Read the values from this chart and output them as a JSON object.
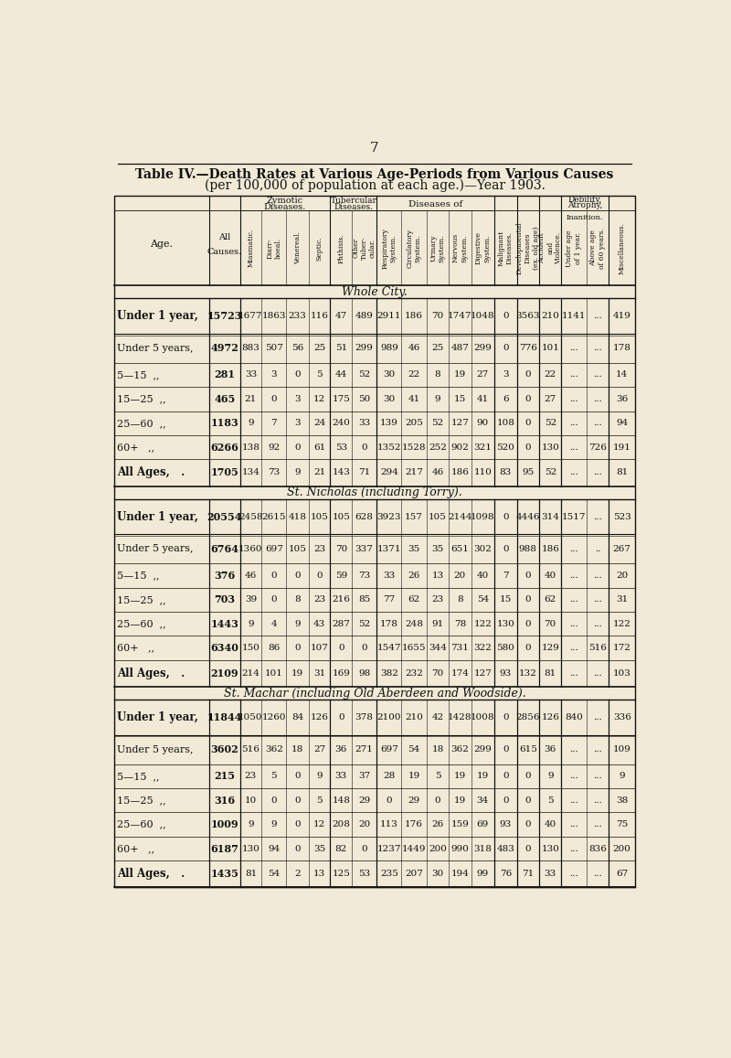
{
  "page_number": "7",
  "title_line1": "Table IV.—Death Rates at Various Age-Periods from Various Causes",
  "title_line2": "(per 100,000 of population at each age.)—Year 1903.",
  "bg_color": "#f0ead6",
  "text_color": "#111111",
  "sections": [
    {
      "name": "Whole City.",
      "rows": [
        [
          "Under 1 year,",
          "15723",
          "1677",
          "1863",
          "233",
          "116",
          "47",
          "489",
          "2911",
          "186",
          "70",
          "1747",
          "1048",
          "0",
          "3563",
          "210",
          "1141",
          "...",
          "419"
        ],
        [
          "Under 5 years,",
          "4972",
          "883",
          "507",
          "56",
          "25",
          "51",
          "299",
          "989",
          "46",
          "25",
          "487",
          "299",
          "0",
          "776",
          "101",
          "...",
          "...",
          "178"
        ],
        [
          "5—15  ,,",
          "281",
          "33",
          "3",
          "0",
          "5",
          "44",
          "52",
          "30",
          "22",
          "8",
          "19",
          "27",
          "3",
          "0",
          "22",
          "...",
          "...",
          "14"
        ],
        [
          "15—25  ,,",
          "465",
          "21",
          "0",
          "3",
          "12",
          "175",
          "50",
          "30",
          "41",
          "9",
          "15",
          "41",
          "6",
          "0",
          "27",
          "...",
          "...",
          "36"
        ],
        [
          "25—60  ,,",
          "1183",
          "9",
          "7",
          "3",
          "24",
          "240",
          "33",
          "139",
          "205",
          "52",
          "127",
          "90",
          "108",
          "0",
          "52",
          "...",
          "...",
          "94"
        ],
        [
          "60+   ,,",
          "6266",
          "138",
          "92",
          "0",
          "61",
          "53",
          "0",
          "1352",
          "1528",
          "252",
          "902",
          "321",
          "520",
          "0",
          "130",
          "...",
          "726",
          "191"
        ],
        [
          "All Ages,   .",
          "1705",
          "134",
          "73",
          "9",
          "21",
          "143",
          "71",
          "294",
          "217",
          "46",
          "186",
          "110",
          "83",
          "95",
          "52",
          "...",
          "...",
          "81"
        ]
      ]
    },
    {
      "name": "St. Nicholas (including Torry).",
      "rows": [
        [
          "Under 1 year,",
          "20554",
          "2458",
          "2615",
          "418",
          "105",
          "105",
          "628",
          "3923",
          "157",
          "105",
          "2144",
          "1098",
          "0",
          "4446",
          "314",
          "1517",
          "...",
          "523"
        ],
        [
          "Under 5 years,",
          "6764",
          "1360",
          "697",
          "105",
          "23",
          "70",
          "337",
          "1371",
          "35",
          "35",
          "651",
          "302",
          "0",
          "988",
          "186",
          "...",
          "..",
          "267"
        ],
        [
          "5—15  ,,",
          "376",
          "46",
          "0",
          "0",
          "0",
          "59",
          "73",
          "33",
          "26",
          "13",
          "20",
          "40",
          "7",
          "0",
          "40",
          "...",
          "...",
          "20"
        ],
        [
          "15—25  ,,",
          "703",
          "39",
          "0",
          "8",
          "23",
          "216",
          "85",
          "77",
          "62",
          "23",
          "8",
          "54",
          "15",
          "0",
          "62",
          "...",
          "...",
          "31"
        ],
        [
          "25—60  ,,",
          "1443",
          "9",
          "4",
          "9",
          "43",
          "287",
          "52",
          "178",
          "248",
          "91",
          "78",
          "122",
          "130",
          "0",
          "70",
          "...",
          "...",
          "122"
        ],
        [
          "60+   ,,",
          "6340",
          "150",
          "86",
          "0",
          "107",
          "0",
          "0",
          "1547",
          "1655",
          "344",
          "731",
          "322",
          "580",
          "0",
          "129",
          "...",
          "516",
          "172"
        ],
        [
          "All Ages,   .",
          "2109",
          "214",
          "101",
          "19",
          "31",
          "169",
          "98",
          "382",
          "232",
          "70",
          "174",
          "127",
          "93",
          "132",
          "81",
          "...",
          "...",
          "103"
        ]
      ]
    },
    {
      "name": "St. Machar (including Old Aberdeen and Woodside).",
      "rows": [
        [
          "Under 1 year,",
          "11844",
          "1050",
          "1260",
          "84",
          "126",
          "0",
          "378",
          "2100",
          "210",
          "42",
          "1428",
          "1008",
          "0",
          "2856",
          "126",
          "840",
          "...",
          "336"
        ],
        [
          "Under 5 years,",
          "3602",
          "516",
          "362",
          "18",
          "27",
          "36",
          "271",
          "697",
          "54",
          "18",
          "362",
          "299",
          "0",
          "615",
          "36",
          "...",
          "...",
          "109"
        ],
        [
          "5—15  ,,",
          "215",
          "23",
          "5",
          "0",
          "9",
          "33",
          "37",
          "28",
          "19",
          "5",
          "19",
          "19",
          "0",
          "0",
          "9",
          "...",
          "...",
          "9"
        ],
        [
          "15—25  ,,",
          "316",
          "10",
          "0",
          "0",
          "5",
          "148",
          "29",
          "0",
          "29",
          "0",
          "19",
          "34",
          "0",
          "0",
          "5",
          "...",
          "...",
          "38"
        ],
        [
          "25—60  ,,",
          "1009",
          "9",
          "9",
          "0",
          "12",
          "208",
          "20",
          "113",
          "176",
          "26",
          "159",
          "69",
          "93",
          "0",
          "40",
          "...",
          "...",
          "75"
        ],
        [
          "60+   ,,",
          "6187",
          "130",
          "94",
          "0",
          "35",
          "82",
          "0",
          "1237",
          "1449",
          "200",
          "990",
          "318",
          "483",
          "0",
          "130",
          "...",
          "836",
          "200"
        ],
        [
          "All Ages,   .",
          "1435",
          "81",
          "54",
          "2",
          "13",
          "125",
          "53",
          "235",
          "207",
          "30",
          "194",
          "99",
          "76",
          "71",
          "33",
          "...",
          "...",
          "67"
        ]
      ]
    }
  ]
}
